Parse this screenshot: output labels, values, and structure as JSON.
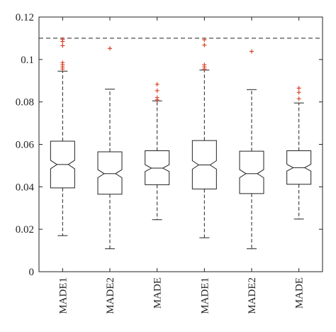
{
  "chart_data": {
    "type": "boxplot",
    "notched": true,
    "grid": false,
    "ylim": [
      0,
      0.12
    ],
    "yticks": [
      "0",
      "0.02",
      "0.04",
      "0.06",
      "0.08",
      "0.1",
      "0.12"
    ],
    "categories": [
      "MADE1",
      "MADE2",
      "MADE",
      "MADE1",
      "MADE2",
      "MADE"
    ],
    "boxes": [
      {
        "whisker_low": 0.017,
        "q1": 0.0395,
        "median": 0.0505,
        "q3": 0.0615,
        "whisker_high": 0.0945,
        "notch_low": 0.0485,
        "notch_high": 0.0525,
        "outliers": [
          0.1095,
          0.1085,
          0.1065,
          0.0985,
          0.0975,
          0.0965,
          0.0955
        ]
      },
      {
        "whisker_low": 0.0108,
        "q1": 0.0365,
        "median": 0.0462,
        "q3": 0.0565,
        "whisker_high": 0.086,
        "notch_low": 0.0443,
        "notch_high": 0.0481,
        "outliers": [
          0.1052
        ]
      },
      {
        "whisker_low": 0.0245,
        "q1": 0.041,
        "median": 0.0488,
        "q3": 0.057,
        "whisker_high": 0.0805,
        "notch_low": 0.0472,
        "notch_high": 0.0504,
        "outliers": [
          0.0883,
          0.0853,
          0.082,
          0.081
        ]
      },
      {
        "whisker_low": 0.016,
        "q1": 0.039,
        "median": 0.0503,
        "q3": 0.0618,
        "whisker_high": 0.095,
        "notch_low": 0.0483,
        "notch_high": 0.0523,
        "outliers": [
          0.1093,
          0.1068,
          0.0975,
          0.0965,
          0.0955
        ]
      },
      {
        "whisker_low": 0.0108,
        "q1": 0.0368,
        "median": 0.0462,
        "q3": 0.0568,
        "whisker_high": 0.0858,
        "notch_low": 0.0443,
        "notch_high": 0.0481,
        "outliers": [
          0.1038
        ]
      },
      {
        "whisker_low": 0.0248,
        "q1": 0.0412,
        "median": 0.049,
        "q3": 0.057,
        "whisker_high": 0.0795,
        "notch_low": 0.0474,
        "notch_high": 0.0506,
        "outliers": [
          0.0865,
          0.0845,
          0.0815
        ]
      }
    ],
    "reference_line": {
      "y": 0.11,
      "style": "dashed"
    },
    "colors": {
      "box": "#222222",
      "outlier": "#d9452b",
      "reference": "#222222"
    }
  }
}
